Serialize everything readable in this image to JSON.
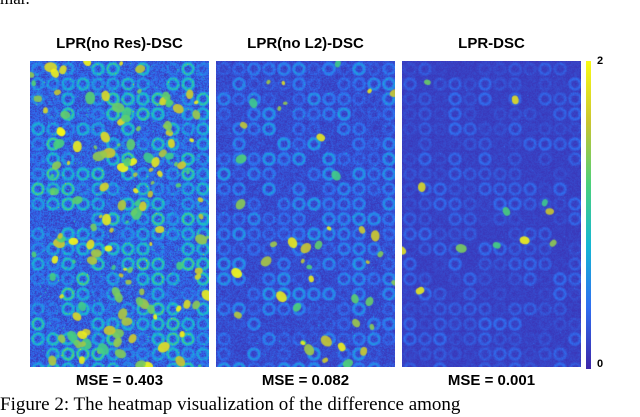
{
  "top_fragment": "mar.",
  "panels": [
    {
      "title": "LPR(no Res)-DSC",
      "mse": "MSE = 0.403",
      "seed": 11,
      "intensity": 0.55
    },
    {
      "title": "LPR(no L2)-DSC",
      "mse": "MSE = 0.082",
      "seed": 23,
      "intensity": 0.3
    },
    {
      "title": "LPR-DSC",
      "mse": "MSE = 0.001",
      "seed": 37,
      "intensity": 0.16
    }
  ],
  "colorbar": {
    "max_label": "2",
    "min_label": "0",
    "colors": [
      "#3d26a8",
      "#2f6ef0",
      "#14b6d4",
      "#4bd07a",
      "#c9c530",
      "#f9fb15"
    ]
  },
  "caption": "Figure 2: The heatmap visualization of the difference among"
}
